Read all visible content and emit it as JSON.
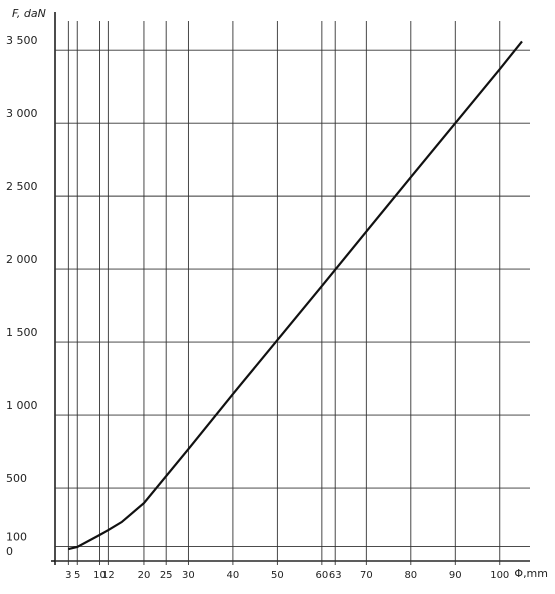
{
  "chart_data": {
    "type": "line",
    "y_label": "F, daN",
    "x_label": "Φ,mm",
    "x": [
      3,
      5,
      10,
      12,
      15,
      20,
      30,
      40,
      50,
      60,
      70,
      80,
      90,
      100,
      105
    ],
    "series": [
      {
        "color": "#111111",
        "values": [
          82,
          96,
          178,
          212,
          267,
          397,
          767,
          1144,
          1514,
          1884,
          2257,
          2630,
          3000,
          3370,
          3560
        ]
      }
    ],
    "xlim": [
      0,
      105
    ],
    "ylim": [
      0,
      3700
    ],
    "xticks": [
      3,
      5,
      10,
      12,
      20,
      25,
      30,
      40,
      50,
      60,
      63,
      70,
      80,
      90,
      100
    ],
    "yticks": [
      0,
      100,
      500,
      {
        "value": 1000,
        "label": "1 000"
      },
      {
        "value": 1500,
        "label": "1 500"
      },
      {
        "value": 2000,
        "label": "2 000"
      },
      {
        "value": 2500,
        "label": "2 500"
      },
      {
        "value": 3000,
        "label": "3 000"
      },
      {
        "value": 3500,
        "label": "3 500"
      }
    ],
    "grid": true
  }
}
